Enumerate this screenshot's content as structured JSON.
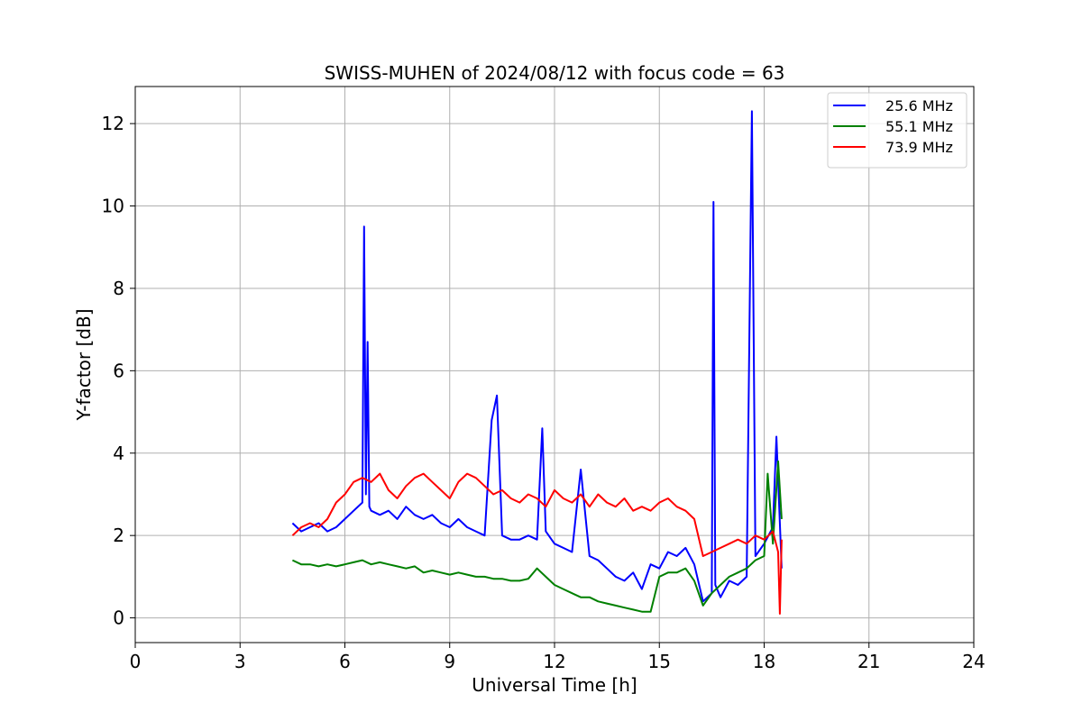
{
  "chart_data": {
    "type": "line",
    "title": "SWISS-MUHEN of 2024/08/12 with focus code = 63",
    "xlabel": "Universal Time [h]",
    "ylabel": "Y-factor [dB]",
    "xlim": [
      0,
      24
    ],
    "ylim": [
      -0.6,
      12.9
    ],
    "xticks": [
      0,
      3,
      6,
      9,
      12,
      15,
      18,
      21,
      24
    ],
    "yticks": [
      0,
      2,
      4,
      6,
      8,
      10,
      12
    ],
    "xtick_labels": [
      "0",
      "3",
      "6",
      "9",
      "12",
      "15",
      "18",
      "21",
      "24"
    ],
    "ytick_labels": [
      "0",
      "2",
      "4",
      "6",
      "8",
      "10",
      "12"
    ],
    "grid": true,
    "legend_position": "top-right",
    "series": [
      {
        "name": "25.6 MHz",
        "color": "#0000ff",
        "x": [
          4.5,
          4.75,
          5.0,
          5.25,
          5.5,
          5.75,
          6.0,
          6.25,
          6.5,
          6.55,
          6.6,
          6.65,
          6.7,
          6.75,
          7.0,
          7.25,
          7.5,
          7.75,
          8.0,
          8.25,
          8.5,
          8.75,
          9.0,
          9.25,
          9.5,
          9.75,
          10.0,
          10.2,
          10.35,
          10.5,
          10.75,
          11.0,
          11.25,
          11.5,
          11.65,
          11.75,
          12.0,
          12.25,
          12.5,
          12.75,
          13.0,
          13.25,
          13.5,
          13.75,
          14.0,
          14.25,
          14.5,
          14.75,
          15.0,
          15.25,
          15.5,
          15.75,
          16.0,
          16.25,
          16.5,
          16.55,
          16.6,
          16.75,
          17.0,
          17.25,
          17.5,
          17.65,
          17.75,
          18.0,
          18.25,
          18.35,
          18.5
        ],
        "y": [
          2.3,
          2.1,
          2.2,
          2.3,
          2.1,
          2.2,
          2.4,
          2.6,
          2.8,
          9.5,
          3.0,
          6.7,
          2.7,
          2.6,
          2.5,
          2.6,
          2.4,
          2.7,
          2.5,
          2.4,
          2.5,
          2.3,
          2.2,
          2.4,
          2.2,
          2.1,
          2.0,
          4.8,
          5.4,
          2.0,
          1.9,
          1.9,
          2.0,
          1.9,
          4.6,
          2.1,
          1.8,
          1.7,
          1.6,
          3.6,
          1.5,
          1.4,
          1.2,
          1.0,
          0.9,
          1.1,
          0.7,
          1.3,
          1.2,
          1.6,
          1.5,
          1.7,
          1.3,
          0.4,
          0.6,
          10.1,
          0.8,
          0.5,
          0.9,
          0.8,
          1.0,
          12.3,
          1.5,
          1.8,
          2.2,
          4.4,
          1.2
        ]
      },
      {
        "name": "55.1 MHz",
        "color": "#008000",
        "x": [
          4.5,
          4.75,
          5.0,
          5.25,
          5.5,
          5.75,
          6.0,
          6.25,
          6.5,
          6.75,
          7.0,
          7.25,
          7.5,
          7.75,
          8.0,
          8.25,
          8.5,
          8.75,
          9.0,
          9.25,
          9.5,
          9.75,
          10.0,
          10.25,
          10.5,
          10.75,
          11.0,
          11.25,
          11.5,
          11.75,
          12.0,
          12.25,
          12.5,
          12.75,
          13.0,
          13.25,
          13.5,
          13.75,
          14.0,
          14.25,
          14.5,
          14.75,
          15.0,
          15.25,
          15.5,
          15.75,
          16.0,
          16.25,
          16.5,
          16.75,
          17.0,
          17.25,
          17.5,
          17.75,
          18.0,
          18.1,
          18.25,
          18.4,
          18.5
        ],
        "y": [
          1.4,
          1.3,
          1.3,
          1.25,
          1.3,
          1.25,
          1.3,
          1.35,
          1.4,
          1.3,
          1.35,
          1.3,
          1.25,
          1.2,
          1.25,
          1.1,
          1.15,
          1.1,
          1.05,
          1.1,
          1.05,
          1.0,
          1.0,
          0.95,
          0.95,
          0.9,
          0.9,
          0.95,
          1.2,
          1.0,
          0.8,
          0.7,
          0.6,
          0.5,
          0.5,
          0.4,
          0.35,
          0.3,
          0.25,
          0.2,
          0.15,
          0.15,
          1.0,
          1.1,
          1.1,
          1.2,
          0.9,
          0.3,
          0.6,
          0.8,
          1.0,
          1.1,
          1.2,
          1.4,
          1.5,
          3.5,
          1.8,
          3.8,
          2.4
        ]
      },
      {
        "name": "73.9 MHz",
        "color": "#ff0000",
        "x": [
          4.5,
          4.75,
          5.0,
          5.25,
          5.5,
          5.75,
          6.0,
          6.25,
          6.5,
          6.75,
          7.0,
          7.25,
          7.5,
          7.75,
          8.0,
          8.25,
          8.5,
          8.75,
          9.0,
          9.25,
          9.5,
          9.75,
          10.0,
          10.25,
          10.5,
          10.75,
          11.0,
          11.25,
          11.5,
          11.75,
          12.0,
          12.25,
          12.5,
          12.75,
          13.0,
          13.25,
          13.5,
          13.75,
          14.0,
          14.25,
          14.5,
          14.75,
          15.0,
          15.25,
          15.5,
          15.75,
          16.0,
          16.25,
          16.5,
          16.75,
          17.0,
          17.25,
          17.5,
          17.75,
          18.0,
          18.25,
          18.4,
          18.45,
          18.5
        ],
        "y": [
          2.0,
          2.2,
          2.3,
          2.2,
          2.4,
          2.8,
          3.0,
          3.3,
          3.4,
          3.3,
          3.5,
          3.1,
          2.9,
          3.2,
          3.4,
          3.5,
          3.3,
          3.1,
          2.9,
          3.3,
          3.5,
          3.4,
          3.2,
          3.0,
          3.1,
          2.9,
          2.8,
          3.0,
          2.9,
          2.7,
          3.1,
          2.9,
          2.8,
          3.0,
          2.7,
          3.0,
          2.8,
          2.7,
          2.9,
          2.6,
          2.7,
          2.6,
          2.8,
          2.9,
          2.7,
          2.6,
          2.4,
          1.5,
          1.6,
          1.7,
          1.8,
          1.9,
          1.8,
          2.0,
          1.9,
          2.1,
          1.6,
          0.1,
          1.9
        ]
      }
    ]
  }
}
